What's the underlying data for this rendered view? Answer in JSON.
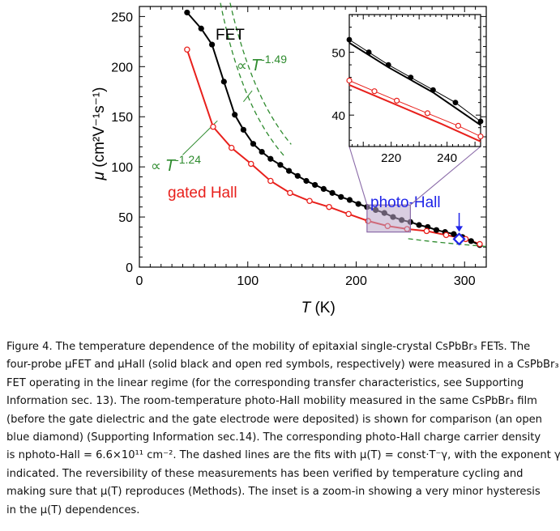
{
  "chart_data": {
    "type": "scatter",
    "xlabel_var": "T",
    "xlabel_unit": "(K)",
    "ylabel_var": "μ",
    "ylabel_unit": "(cm²V⁻¹s⁻¹)",
    "xlim": [
      0,
      320
    ],
    "ylim": [
      0,
      260
    ],
    "xticks": [
      0,
      100,
      200,
      300
    ],
    "yticks": [
      0,
      50,
      100,
      150,
      200,
      250
    ],
    "series": [
      {
        "name": "FET",
        "color": "#000000",
        "marker": "filled-circle",
        "x": [
          44,
          57,
          67,
          78,
          88,
          96,
          105,
          113,
          121,
          130,
          138,
          146,
          154,
          162,
          170,
          178,
          186,
          194,
          202,
          210,
          218,
          226,
          234,
          242,
          250,
          258,
          266,
          274,
          282,
          290,
          298,
          306,
          314
        ],
        "y": [
          254,
          238,
          222,
          185,
          152,
          137,
          123,
          115,
          108,
          102,
          96,
          91,
          86,
          82,
          78,
          74,
          70,
          67,
          63,
          60,
          57,
          54,
          50,
          47,
          45,
          42,
          40,
          37,
          35,
          33,
          30,
          26,
          22
        ]
      },
      {
        "name": "gated Hall",
        "color": "#e8201c",
        "marker": "open-circle",
        "x": [
          44,
          68,
          85,
          103,
          121,
          139,
          157,
          175,
          193,
          211,
          229,
          247,
          265,
          283,
          301,
          314
        ],
        "y": [
          217,
          140,
          119,
          103,
          86,
          74,
          66,
          60,
          53,
          46,
          41,
          38,
          36,
          32,
          28,
          23
        ]
      }
    ],
    "photo_hall": {
      "label": "photo-Hall",
      "x": 295,
      "y": 28,
      "color": "#1f24e8",
      "marker": "open-diamond"
    },
    "fit_lines": [
      {
        "label_prefix": "∝",
        "label_var": "T",
        "exponent": "-1.49",
        "color": "#2e8b2e",
        "style": "dashed"
      },
      {
        "label_prefix": "∝",
        "label_var": "T",
        "exponent": "-1.24",
        "color": "#2e8b2e",
        "style": "dashed"
      }
    ],
    "zoom_region": {
      "xlim": [
        210,
        250
      ],
      "ylim": [
        35,
        50
      ]
    },
    "inset": {
      "xlim": [
        205,
        252
      ],
      "ylim": [
        35,
        56
      ],
      "xticks": [
        220,
        240
      ],
      "yticks": [
        40,
        50
      ],
      "fet_cool": {
        "x": [
          205,
          212,
          219,
          227,
          235,
          243,
          252
        ],
        "y": [
          52,
          50,
          48,
          46,
          44,
          42,
          39
        ]
      },
      "fet_warm": {
        "x": [
          205,
          219,
          235,
          252
        ],
        "y": [
          51.5,
          47.6,
          43.6,
          38.4
        ]
      },
      "hall_cool": {
        "x": [
          205,
          214,
          222,
          233,
          244,
          252
        ],
        "y": [
          45.5,
          43.8,
          42.3,
          40.3,
          38.3,
          36.6
        ]
      },
      "hall_warm": {
        "x": [
          205,
          221,
          238,
          252
        ],
        "y": [
          44.8,
          41.8,
          38.6,
          35.8
        ]
      }
    }
  },
  "caption": {
    "lines": [
      "Figure 4.  The temperature dependence of the mobility of epitaxial single-crystal CsPbBr₃ FETs.  The",
      "four-probe μFET and μHall (solid black and open red symbols, respectively) were measured in a CsPbBr₃",
      "FET operating in the linear regime (for the corresponding transfer characteristics, see Supporting",
      "Information sec. 13).  The room-temperature photo-Hall mobility measured in the same CsPbBr₃ film",
      "(before the gate dielectric and the gate electrode were deposited) is shown for comparison (an open",
      "blue diamond) (Supporting Information sec.14).  The corresponding photo-Hall charge carrier density",
      "is nphoto-Hall = 6.6×10¹¹ cm⁻².  The dashed lines are the fits with μ(T) = const·T⁻γ, with the exponent γ",
      "indicated.  The reversibility of these measurements has been verified by temperature cycling and",
      "making sure that μ(T) reproduces (Methods).  The inset is a zoom-in showing a very minor hysteresis",
      "in the μ(T) dependences."
    ]
  }
}
